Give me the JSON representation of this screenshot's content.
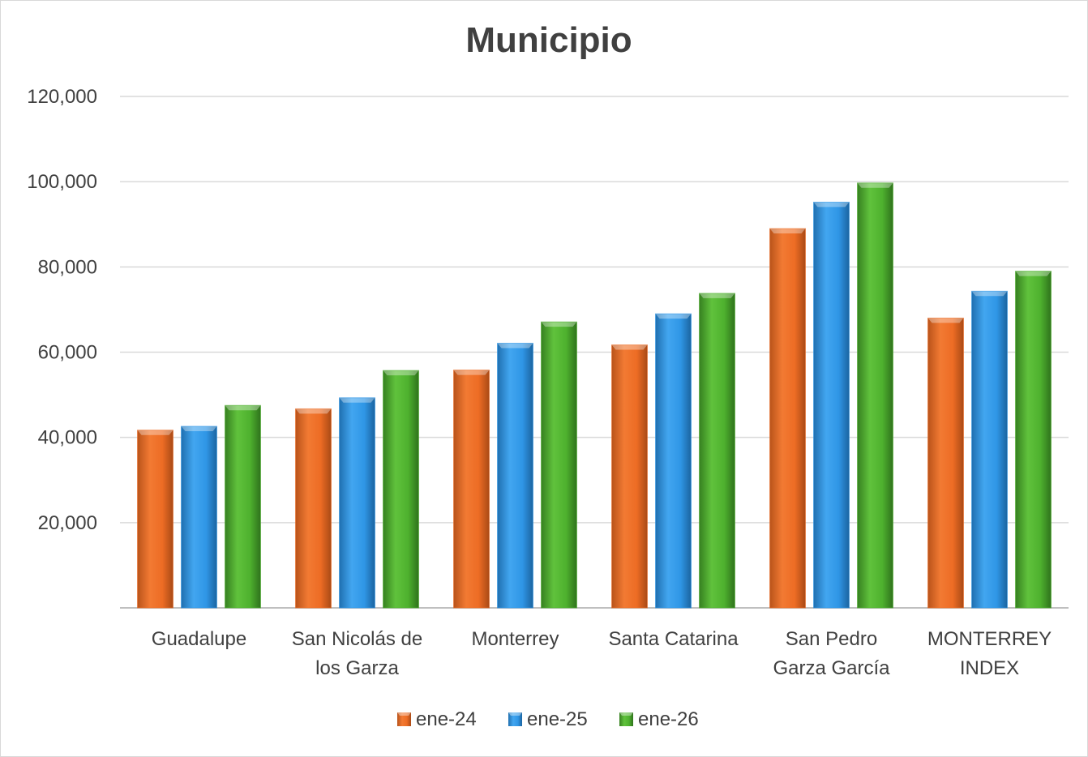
{
  "chart_data": {
    "type": "bar",
    "title": "Municipio",
    "xlabel": "",
    "ylabel": "",
    "ylim": [
      0,
      120000
    ],
    "yticks": [
      "20,000",
      "40,000",
      "60,000",
      "80,000",
      "100,000",
      "120,000"
    ],
    "ytick_values": [
      20000,
      40000,
      60000,
      80000,
      100000,
      120000
    ],
    "grid": true,
    "legend_position": "bottom",
    "categories": [
      [
        "Guadalupe"
      ],
      [
        "San Nicolás de",
        "los Garza"
      ],
      [
        "Monterrey"
      ],
      [
        "Santa Catarina"
      ],
      [
        "San Pedro",
        "Garza García"
      ],
      [
        "MONTERREY",
        "INDEX"
      ]
    ],
    "series": [
      {
        "name": "ene-24",
        "color": "#ed6c24",
        "values": [
          41700,
          46700,
          55800,
          61700,
          89000,
          68000
        ]
      },
      {
        "name": "ene-25",
        "color": "#2f96e6",
        "values": [
          42600,
          49300,
          62100,
          69000,
          95200,
          74300
        ]
      },
      {
        "name": "ene-26",
        "color": "#4eb12e",
        "values": [
          47500,
          55700,
          67100,
          73800,
          99700,
          79000
        ]
      }
    ]
  }
}
